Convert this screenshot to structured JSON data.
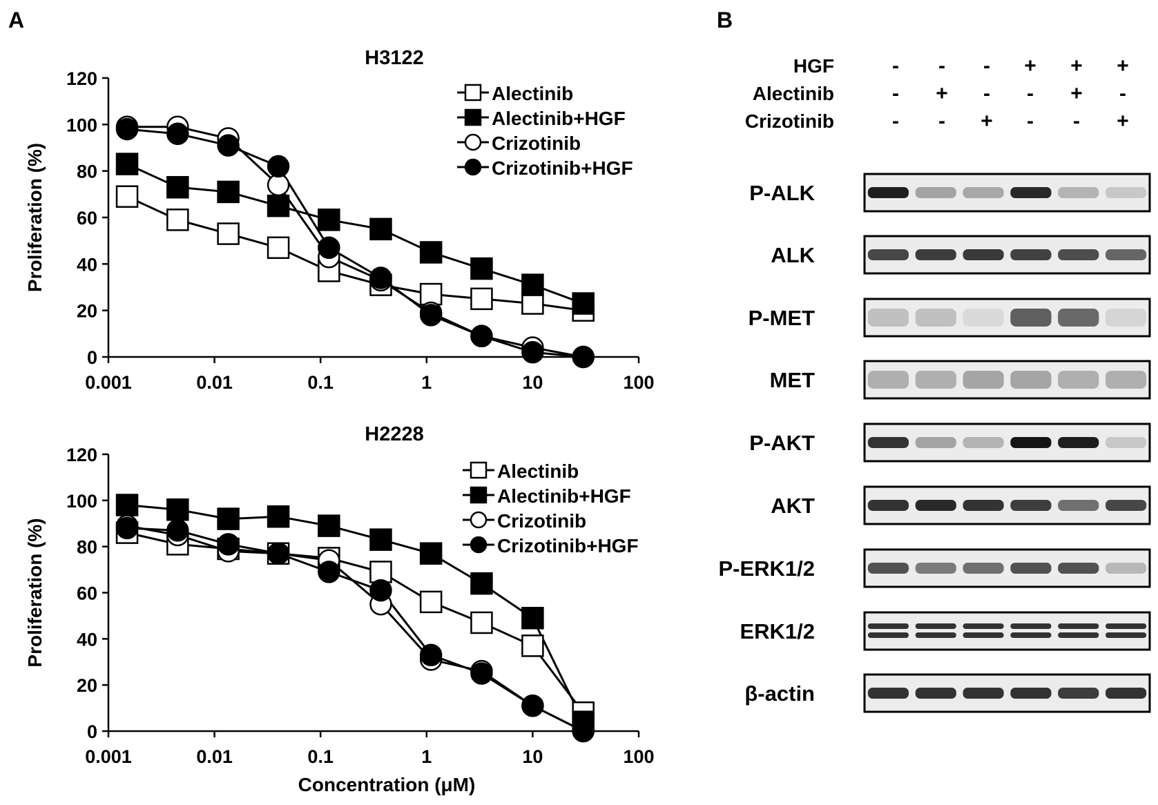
{
  "panel_labels": {
    "a": "A",
    "b": "B"
  },
  "panel_a": {
    "shared_xlabel": "Concentration (μM)",
    "legend": [
      {
        "label": "Alectinib",
        "marker": "square",
        "filled": false
      },
      {
        "label": "Alectinib+HGF",
        "marker": "square",
        "filled": true
      },
      {
        "label": "Crizotinib",
        "marker": "circle",
        "filled": false
      },
      {
        "label": "Crizotinib+HGF",
        "marker": "circle",
        "filled": true
      }
    ]
  },
  "panel_b": {
    "conditions": [
      {
        "label": "HGF",
        "signs": [
          "-",
          "-",
          "-",
          "+",
          "+",
          "+"
        ]
      },
      {
        "label": "Alectinib",
        "signs": [
          "-",
          "+",
          "-",
          "-",
          "+",
          "-"
        ]
      },
      {
        "label": "Crizotinib",
        "signs": [
          "-",
          "-",
          "+",
          "-",
          "-",
          "+"
        ]
      }
    ],
    "blots": [
      {
        "label": "P-ALK",
        "intensity": [
          0.95,
          0.3,
          0.28,
          0.9,
          0.22,
          0.12
        ],
        "double": false
      },
      {
        "label": "ALK",
        "intensity": [
          0.75,
          0.8,
          0.82,
          0.78,
          0.72,
          0.6
        ],
        "double": false
      },
      {
        "label": "P-MET",
        "intensity": [
          0.2,
          0.2,
          0.05,
          0.75,
          0.7,
          0.08
        ],
        "double": false,
        "diffuse": true
      },
      {
        "label": "MET",
        "intensity": [
          0.3,
          0.3,
          0.35,
          0.35,
          0.3,
          0.3
        ],
        "double": false,
        "diffuse": true
      },
      {
        "label": "P-AKT",
        "intensity": [
          0.85,
          0.3,
          0.22,
          1.0,
          0.95,
          0.12
        ],
        "double": false
      },
      {
        "label": "AKT",
        "intensity": [
          0.85,
          0.9,
          0.85,
          0.8,
          0.55,
          0.75
        ],
        "double": false
      },
      {
        "label": "P-ERK1/2",
        "intensity": [
          0.7,
          0.5,
          0.55,
          0.7,
          0.7,
          0.2
        ],
        "double": false
      },
      {
        "label": "ERK1/2",
        "intensity": [
          0.85,
          0.85,
          0.85,
          0.85,
          0.85,
          0.85
        ],
        "double": true
      },
      {
        "label": "β-actin",
        "intensity": [
          0.85,
          0.85,
          0.85,
          0.85,
          0.8,
          0.85
        ],
        "double": false
      }
    ]
  },
  "chart_data": [
    {
      "type": "line",
      "title": "H3122",
      "xlabel": "",
      "ylabel": "Proliferation (%)",
      "xscale": "log",
      "xlim": [
        0.001,
        100
      ],
      "ylim": [
        0,
        120
      ],
      "xticks": [
        "0.001",
        "0.01",
        "0.1",
        "1",
        "10",
        "100"
      ],
      "yticks": [
        "0",
        "20",
        "40",
        "60",
        "80",
        "100",
        "120"
      ],
      "legend_position": "top-right",
      "grid": false,
      "x": [
        0.0015,
        0.0045,
        0.0135,
        0.04,
        0.12,
        0.37,
        1.1,
        3.3,
        10,
        30
      ],
      "series": [
        {
          "name": "Alectinib",
          "marker": "square",
          "filled": false,
          "values": [
            69,
            59,
            53,
            47,
            37,
            31,
            27,
            25,
            23,
            20
          ]
        },
        {
          "name": "Alectinib+HGF",
          "marker": "square",
          "filled": true,
          "values": [
            83,
            73,
            71,
            65,
            59,
            55,
            45,
            38,
            31,
            23
          ]
        },
        {
          "name": "Crizotinib",
          "marker": "circle",
          "filled": false,
          "values": [
            99,
            99,
            94,
            74,
            43,
            33,
            19,
            9,
            4,
            0
          ]
        },
        {
          "name": "Crizotinib+HGF",
          "marker": "circle",
          "filled": true,
          "values": [
            98,
            96,
            91,
            82,
            47,
            34,
            18,
            9,
            2,
            0
          ]
        }
      ]
    },
    {
      "type": "line",
      "title": "H2228",
      "xlabel": "Concentration (μM)",
      "ylabel": "Proliferation (%)",
      "xscale": "log",
      "xlim": [
        0.001,
        100
      ],
      "ylim": [
        0,
        120
      ],
      "xticks": [
        "0.001",
        "0.01",
        "0.1",
        "1",
        "10",
        "100"
      ],
      "yticks": [
        "0",
        "20",
        "40",
        "60",
        "80",
        "100",
        "120"
      ],
      "legend_position": "top-right",
      "grid": false,
      "x": [
        0.0015,
        0.0045,
        0.0135,
        0.04,
        0.12,
        0.37,
        1.1,
        3.3,
        10,
        30
      ],
      "series": [
        {
          "name": "Alectinib",
          "marker": "square",
          "filled": false,
          "values": [
            86,
            81,
            79,
            77,
            75,
            69,
            56,
            47,
            37,
            8
          ]
        },
        {
          "name": "Alectinib+HGF",
          "marker": "square",
          "filled": true,
          "values": [
            98,
            96,
            92,
            93,
            89,
            83,
            77,
            64,
            49,
            4
          ]
        },
        {
          "name": "Crizotinib",
          "marker": "circle",
          "filled": false,
          "values": [
            89,
            85,
            78,
            77,
            74,
            55,
            31,
            26,
            11,
            0
          ]
        },
        {
          "name": "Crizotinib+HGF",
          "marker": "circle",
          "filled": true,
          "values": [
            88,
            87,
            81,
            77,
            69,
            61,
            33,
            25,
            11,
            0
          ]
        }
      ]
    }
  ]
}
